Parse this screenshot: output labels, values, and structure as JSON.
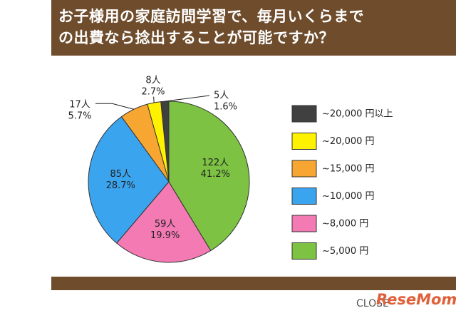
{
  "chart_data": {
    "type": "pie",
    "title": "お子様用の家庭訪問学習で、毎月いくらまで\nの出費なら捻出することが可能ですか？",
    "categories": [
      "~20,000 円以上",
      "~20,000 円",
      "~15,000 円",
      "~10,000 円",
      "~8,000 円",
      "~5,000 円"
    ],
    "values": [
      1.6,
      2.7,
      5.7,
      28.7,
      19.9,
      41.2
    ],
    "value_labels": [
      "1.6%",
      "2.7%",
      "5.7%",
      "28.7%",
      "19.9%",
      "41.2%"
    ],
    "counts": [
      5,
      8,
      17,
      85,
      59,
      122
    ],
    "count_labels": [
      "5人",
      "8人",
      "17人",
      "85人",
      "59人",
      "122人"
    ],
    "colors": [
      "#404040",
      "#fff200",
      "#f7a731",
      "#3ba4ef",
      "#f47ab4",
      "#7dc243"
    ],
    "legend": "right"
  },
  "close_label": "CLOSE",
  "watermark": "ReseMom"
}
